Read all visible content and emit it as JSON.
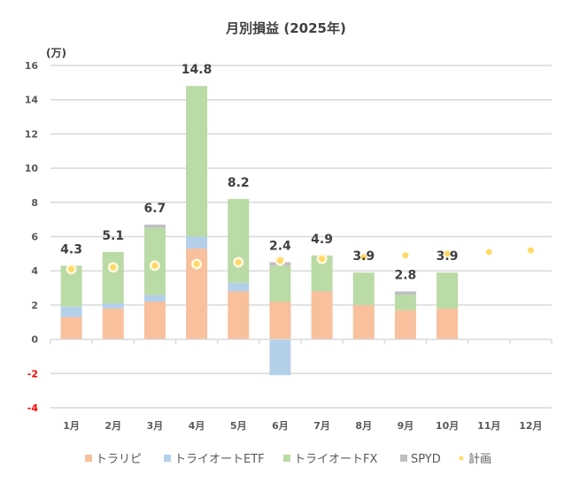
{
  "chart_data": {
    "type": "bar",
    "stacked": true,
    "title": "月別損益 (2025年)",
    "ylabel": "(万)",
    "xlabel": "",
    "ylim": [
      -4,
      16
    ],
    "yticks": [
      16,
      14,
      12,
      10,
      8,
      6,
      4,
      2,
      0,
      -2,
      -4
    ],
    "negative_tick_color": "#ff0000",
    "grid": true,
    "categories": [
      "1月",
      "2月",
      "3月",
      "4月",
      "5月",
      "6月",
      "7月",
      "8月",
      "9月",
      "10月",
      "11月",
      "12月"
    ],
    "series": [
      {
        "name": "トラリピ",
        "color": "#f8c09c",
        "values": [
          1.3,
          1.8,
          2.2,
          5.3,
          2.8,
          2.2,
          2.8,
          2.0,
          1.7,
          1.8,
          null,
          null
        ]
      },
      {
        "name": "トライオートETF",
        "color": "#b4cfea",
        "values": [
          0.6,
          0.3,
          0.4,
          0.7,
          0.5,
          -2.1,
          0.0,
          0.0,
          0.0,
          0.0,
          null,
          null
        ]
      },
      {
        "name": "トライオートFX",
        "color": "#badaa6",
        "values": [
          2.4,
          3.0,
          3.9,
          8.8,
          4.9,
          2.1,
          2.1,
          1.9,
          0.9,
          2.1,
          null,
          null
        ]
      },
      {
        "name": "SPYD",
        "color": "#bfbfbf",
        "values": [
          0.0,
          0.0,
          0.2,
          0.0,
          0.0,
          0.2,
          0.0,
          0.0,
          0.2,
          0.0,
          null,
          null
        ]
      }
    ],
    "plan": {
      "name": "計画",
      "color": "#ffd966",
      "values": [
        4.1,
        4.2,
        4.3,
        4.4,
        4.5,
        4.6,
        4.7,
        4.8,
        4.9,
        5.0,
        5.1,
        5.2
      ]
    },
    "totals_labels": [
      "4.3",
      "5.1",
      "6.7",
      "14.8",
      "8.2",
      "2.4",
      "4.9",
      "3.9",
      "2.8",
      "3.9",
      "",
      ""
    ],
    "legend": {
      "position": "bottom",
      "entries": [
        "トラリピ",
        "トライオートETF",
        "トライオートFX",
        "SPYD",
        "計画"
      ]
    }
  }
}
